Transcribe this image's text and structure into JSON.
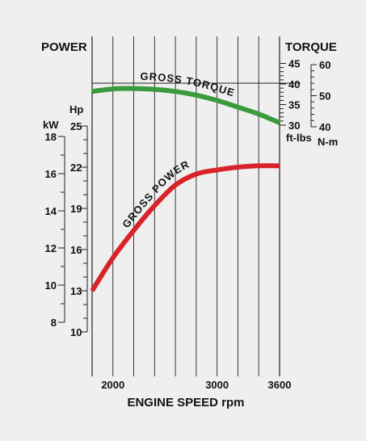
{
  "chart_data": {
    "type": "line",
    "xlabel": "ENGINE SPEED rpm",
    "xlim": [
      1800,
      3600
    ],
    "x_ticks": [
      "2000",
      "3000",
      "3600"
    ],
    "left_axis_title": "POWER",
    "right_axis_title": "TORQUE",
    "axes": {
      "kw": {
        "unit": "kW",
        "ticks": [
          "18",
          "16",
          "14",
          "12",
          "10",
          "8"
        ]
      },
      "hp": {
        "unit": "Hp",
        "ticks": [
          "25",
          "22",
          "19",
          "16",
          "13",
          "10"
        ]
      },
      "ftlbs": {
        "unit": "ft-lbs",
        "ticks": [
          "45",
          "40",
          "35",
          "30"
        ]
      },
      "nm": {
        "unit": "N-m",
        "ticks": [
          "60",
          "50",
          "40"
        ]
      }
    },
    "series": [
      {
        "name": "GROSS TORQUE",
        "color": "#3a9a3c",
        "unit": "ft-lbs",
        "x": [
          1800,
          2000,
          2200,
          2400,
          2600,
          2800,
          3000,
          3200,
          3400,
          3600
        ],
        "y": [
          38.2,
          38.8,
          38.9,
          38.7,
          38.2,
          37.3,
          36.0,
          34.4,
          32.7,
          30.6
        ]
      },
      {
        "name": "GROSS POWER",
        "color": "#d8232a",
        "unit": "Hp",
        "x": [
          1800,
          2000,
          2200,
          2400,
          2600,
          2800,
          3000,
          3200,
          3400,
          3600
        ],
        "y": [
          13.0,
          15.4,
          17.4,
          19.2,
          20.7,
          21.5,
          21.8,
          22.0,
          22.1,
          22.1
        ]
      }
    ]
  }
}
